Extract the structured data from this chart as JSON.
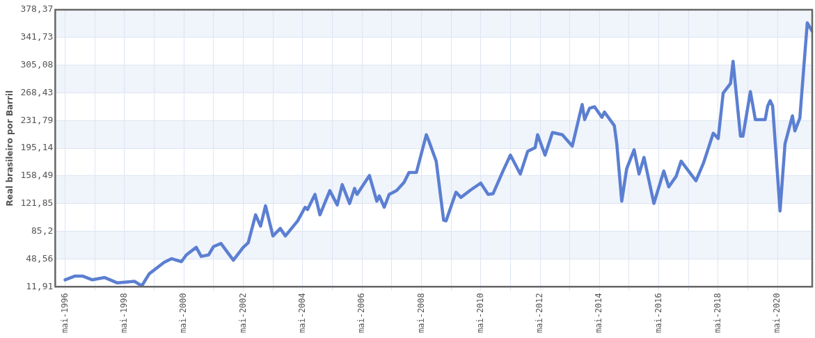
{
  "chart_data": {
    "type": "line",
    "ylabel": "Real brasileiro por Barril",
    "x": [
      "1996-05",
      "1996-09",
      "1996-12",
      "1997-04",
      "1997-09",
      "1998-02",
      "1998-09",
      "1998-12",
      "1999-03",
      "1999-09",
      "1999-12",
      "2000-04",
      "2000-06",
      "2000-10",
      "2000-12",
      "2001-03",
      "2001-05",
      "2001-08",
      "2002-01",
      "2002-05",
      "2002-07",
      "2002-10",
      "2002-12",
      "2003-02",
      "2003-05",
      "2003-08",
      "2003-10",
      "2004-03",
      "2004-06",
      "2004-07",
      "2004-10",
      "2004-12",
      "2005-04",
      "2005-07",
      "2005-09",
      "2005-12",
      "2006-02",
      "2006-03",
      "2006-08",
      "2006-11",
      "2006-12",
      "2007-02",
      "2007-04",
      "2007-07",
      "2007-10",
      "2007-12",
      "2008-03",
      "2008-07",
      "2008-08",
      "2008-11",
      "2009-02",
      "2009-03",
      "2009-07",
      "2009-09",
      "2010-01",
      "2010-05",
      "2010-08",
      "2010-10",
      "2011-02",
      "2011-05",
      "2011-09",
      "2011-12",
      "2012-03",
      "2012-04",
      "2012-07",
      "2012-10",
      "2013-02",
      "2013-06",
      "2013-10",
      "2013-11",
      "2014-01",
      "2014-03",
      "2014-06",
      "2014-07",
      "2014-11",
      "2014-12",
      "2015-02",
      "2015-04",
      "2015-07",
      "2015-09",
      "2015-11",
      "2016-03",
      "2016-07",
      "2016-09",
      "2016-12",
      "2017-02",
      "2017-05",
      "2017-08",
      "2017-11",
      "2018-03",
      "2018-05",
      "2018-07",
      "2018-10",
      "2018-11",
      "2019-02",
      "2019-03",
      "2019-06",
      "2019-08",
      "2019-12",
      "2020-01",
      "2020-02",
      "2020-03",
      "2020-06",
      "2020-08",
      "2020-11",
      "2020-12",
      "2021-02",
      "2021-05",
      "2021-07"
    ],
    "series": [
      {
        "color": "#5b7fd1",
        "values": [
          21,
          26,
          26,
          21,
          24,
          17,
          19,
          13,
          29,
          44,
          49,
          45,
          54,
          64,
          52,
          54,
          65,
          69,
          47,
          64,
          70,
          107,
          92,
          119,
          79,
          89,
          79,
          99,
          117,
          114,
          134,
          107,
          139,
          120,
          147,
          122,
          142,
          134,
          159,
          125,
          132,
          117,
          134,
          139,
          150,
          163,
          163,
          213,
          205,
          178,
          100,
          99,
          137,
          130,
          140,
          149,
          134,
          135,
          165,
          186,
          161,
          191,
          196,
          213,
          186,
          216,
          213,
          198,
          253,
          233,
          248,
          250,
          236,
          243,
          225,
          201,
          125,
          168,
          193,
          161,
          183,
          122,
          165,
          144,
          158,
          178,
          165,
          152,
          175,
          215,
          208,
          268,
          281,
          310,
          211,
          211,
          270,
          233,
          233,
          251,
          258,
          251,
          112,
          201,
          238,
          218,
          235,
          361,
          350
        ]
      }
    ],
    "xlim": [
      "1996-01",
      "2021-07"
    ],
    "xticks": [
      {
        "value": "1996-05",
        "label": "mai-1996"
      },
      {
        "value": "1997-05",
        "label": null
      },
      {
        "value": "1998-05",
        "label": "mai-1998"
      },
      {
        "value": "1999-05",
        "label": null
      },
      {
        "value": "2000-05",
        "label": "mai-2000"
      },
      {
        "value": "2001-05",
        "label": null
      },
      {
        "value": "2002-05",
        "label": "mai-2002"
      },
      {
        "value": "2003-05",
        "label": null
      },
      {
        "value": "2004-05",
        "label": "mai-2004"
      },
      {
        "value": "2005-05",
        "label": null
      },
      {
        "value": "2006-05",
        "label": "mai-2006"
      },
      {
        "value": "2007-05",
        "label": null
      },
      {
        "value": "2008-05",
        "label": "mai-2008"
      },
      {
        "value": "2009-05",
        "label": null
      },
      {
        "value": "2010-05",
        "label": "mai-2010"
      },
      {
        "value": "2011-05",
        "label": null
      },
      {
        "value": "2012-05",
        "label": "mai-2012"
      },
      {
        "value": "2013-05",
        "label": null
      },
      {
        "value": "2014-05",
        "label": "mai-2014"
      },
      {
        "value": "2015-05",
        "label": null
      },
      {
        "value": "2016-05",
        "label": "mai-2016"
      },
      {
        "value": "2017-05",
        "label": null
      },
      {
        "value": "2018-05",
        "label": "mai-2018"
      },
      {
        "value": "2019-05",
        "label": null
      },
      {
        "value": "2020-05",
        "label": "mai-2020"
      }
    ],
    "ylim": [
      11.91,
      378.37
    ],
    "yticks": [
      {
        "value": 11.91,
        "label": "11,91"
      },
      {
        "value": 48.56,
        "label": "48,56"
      },
      {
        "value": 85.2,
        "label": "85,2"
      },
      {
        "value": 121.85,
        "label": "121,85"
      },
      {
        "value": 158.49,
        "label": "158,49"
      },
      {
        "value": 195.14,
        "label": "195,14"
      },
      {
        "value": 231.79,
        "label": "231,79"
      },
      {
        "value": 268.43,
        "label": "268,43"
      },
      {
        "value": 305.08,
        "label": "305,08"
      },
      {
        "value": 341.73,
        "label": "341,73"
      },
      {
        "value": 378.37,
        "label": "378,37"
      }
    ],
    "grid": true,
    "legend": false,
    "marker": "none",
    "line_style": "solid"
  }
}
